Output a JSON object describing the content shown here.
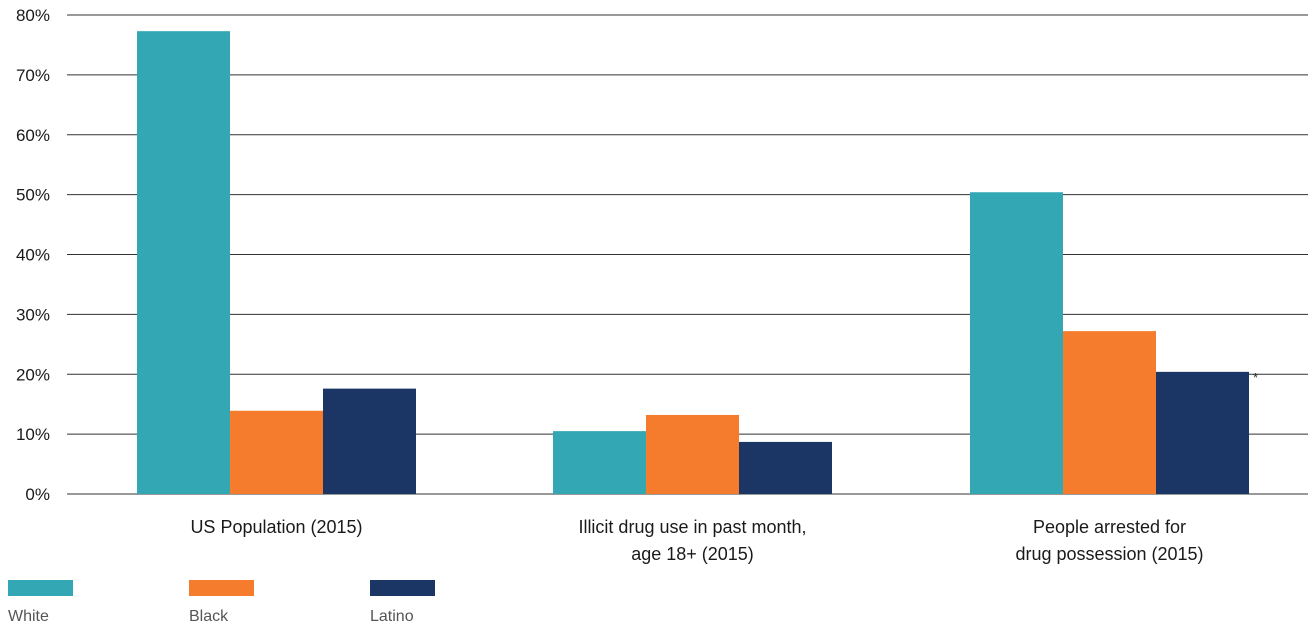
{
  "chart_data": {
    "type": "bar",
    "categories": [
      [
        "US Population (2015)"
      ],
      [
        "Illicit drug use in past month,",
        "age 18+ (2015)"
      ],
      [
        "People arrested for",
        "drug possession (2015)"
      ]
    ],
    "series": [
      {
        "name": "White",
        "color": "#33a8b4",
        "values": [
          77.3,
          10.5,
          50.4
        ]
      },
      {
        "name": "Black",
        "color": "#f47c2c",
        "values": [
          13.9,
          13.2,
          27.2
        ]
      },
      {
        "name": "Latino",
        "color": "#1b3564",
        "values": [
          17.6,
          8.7,
          20.4
        ]
      }
    ],
    "ylim": [
      0,
      80
    ],
    "yticks": [
      0,
      10,
      20,
      30,
      40,
      50,
      60,
      70,
      80
    ],
    "ytick_labels": [
      "0%",
      "10%",
      "20%",
      "30%",
      "40%",
      "50%",
      "60%",
      "70%",
      "80%"
    ],
    "grid": true,
    "legend_position": "bottom-left",
    "annotations": [
      {
        "text": "*",
        "series": "Latino",
        "category_index": 2
      }
    ]
  }
}
